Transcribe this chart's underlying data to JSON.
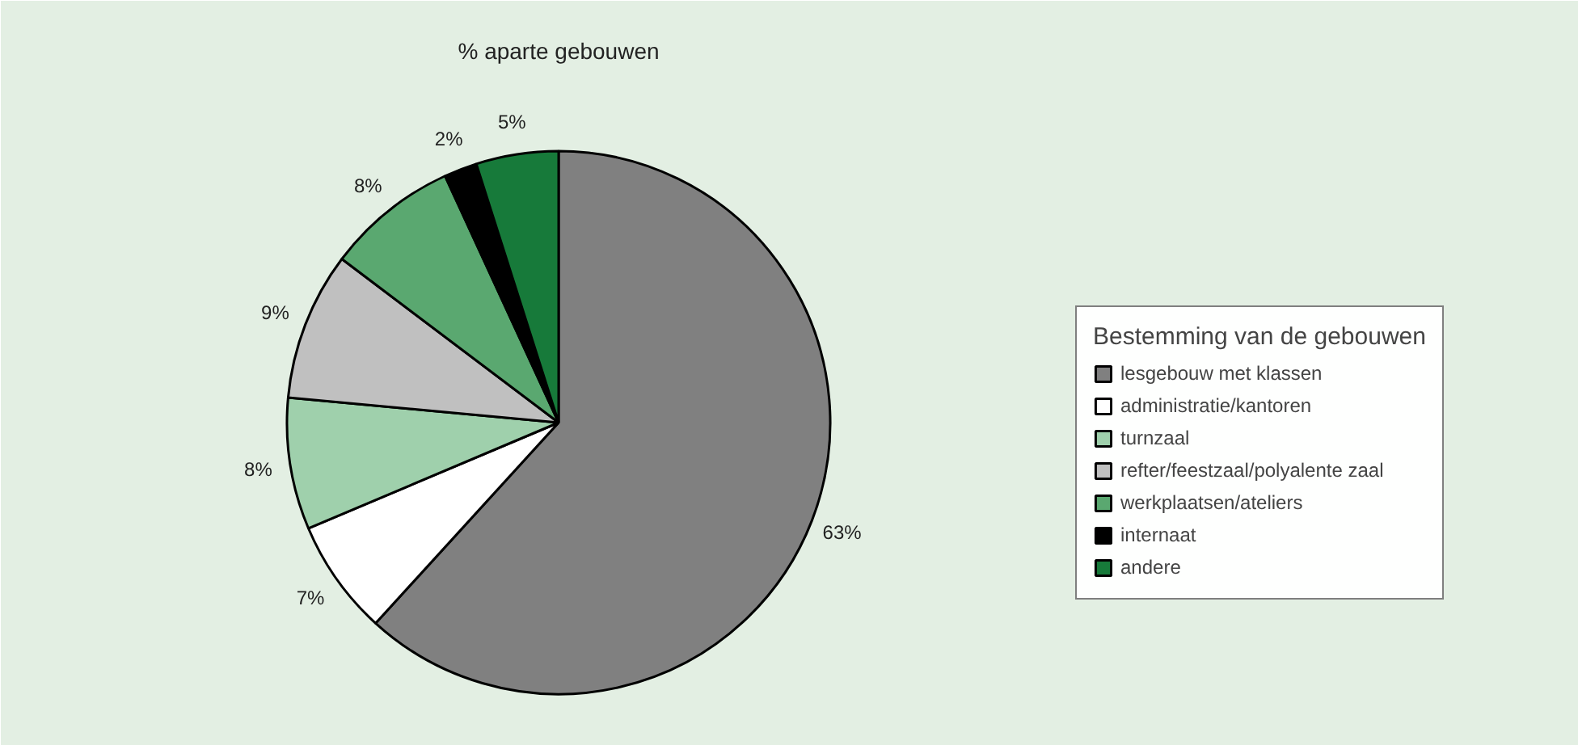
{
  "chart_data": {
    "type": "pie",
    "title": "% aparte gebouwen",
    "legend_title": "Bestemming van de gebouwen",
    "legend": "right",
    "categories": [
      "lesgebouw met klassen",
      "administratie/kantoren",
      "turnzaal",
      "refter/feestzaal/polyalente zaal",
      "werkplaatsen/ateliers",
      "internaat",
      "andere"
    ],
    "values": [
      63,
      7,
      8,
      9,
      8,
      2,
      5
    ],
    "colors": [
      "#808080",
      "#ffffff",
      "#9fd0ac",
      "#c0c0c0",
      "#5aa870",
      "#000000",
      "#177a3a"
    ],
    "value_labels": [
      "63%",
      "7%",
      "8%",
      "9%",
      "8%",
      "2%",
      "5%"
    ]
  }
}
